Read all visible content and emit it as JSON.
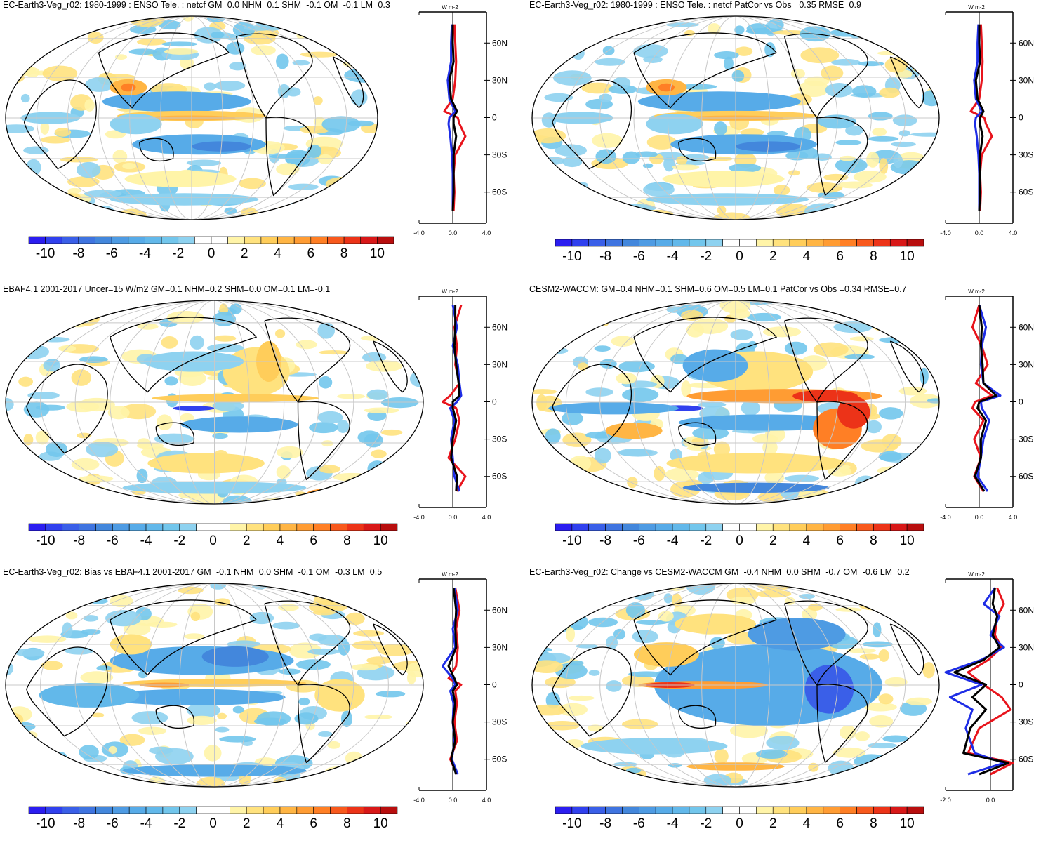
{
  "panels": [
    {
      "title": "EC-Earth3-Veg_r02: 1980-1999 : ENSO Tele. : netcf GM=0.0 NHM=0.1 SHM=-0.1 OM=-0.1 LM=0.3",
      "units": "W m-2",
      "xticks": [
        "-4.0",
        "0.0",
        "4.0"
      ],
      "xlim": [
        -4,
        4
      ]
    },
    {
      "title": "EC-Earth3-Veg_r02: 1980-1999 : ENSO Tele. : netcf PatCor vs Obs =0.35 RMSE=0.9",
      "units": "W m-2",
      "xticks": [
        "-4.0",
        "0.0",
        "4.0"
      ],
      "xlim": [
        -4,
        4
      ]
    },
    {
      "title": "EBAF4.1 2001-2017 Uncer=15 W/m2 GM=0.1 NHM=0.2 SHM=0.0 OM=0.1 LM=-0.1",
      "units": "W m-2",
      "xticks": [
        "-4.0",
        "0.0",
        "4.0"
      ],
      "xlim": [
        -4,
        4
      ]
    },
    {
      "title": "CESM2-WACCM: GM=0.4 NHM=0.1 SHM=0.6 OM=0.5 LM=0.1 PatCor vs Obs =0.34 RMSE=0.7",
      "units": "W m-2",
      "xticks": [
        "-4.0",
        "0.0",
        "4.0"
      ],
      "xlim": [
        -4,
        4
      ]
    },
    {
      "title": "EC-Earth3-Veg_r02: Bias vs EBAF4.1 2001-2017 GM=-0.1 NHM=0.0 SHM=-0.1 OM=-0.3 LM=0.5",
      "units": "W m-2",
      "xticks": [
        "-4.0",
        "0.0",
        "4.0"
      ],
      "xlim": [
        -4,
        4
      ]
    },
    {
      "title": "EC-Earth3-Veg_r02: Change vs CESM2-WACCM GM=-0.4 NHM=0.0 SHM=-0.7 OM=-0.6 LM=0.2",
      "units": "W m-2",
      "xticks": [
        "-2.0",
        "0.0"
      ],
      "xlim": [
        -2,
        1
      ]
    }
  ],
  "lat_ticks": [
    "60N",
    "30N",
    "0",
    "30S",
    "60S"
  ],
  "colorbar": {
    "labels": [
      "-10",
      "-8",
      "-6",
      "-4",
      "-2",
      "0",
      "2",
      "4",
      "6",
      "8",
      "10"
    ],
    "colors": [
      "#2b1df0",
      "#3040ee",
      "#3a5fe8",
      "#3f74e0",
      "#4387dc",
      "#4e9be3",
      "#57abe8",
      "#62b8ea",
      "#72c6ec",
      "#8ed2f0",
      "#ffffff",
      "#ffffff",
      "#fff4a8",
      "#ffe27e",
      "#ffcd5a",
      "#ffb544",
      "#ff9c33",
      "#ff7f25",
      "#f8591d",
      "#ec3318",
      "#d81818",
      "#b80e0e"
    ]
  },
  "chart_data": [
    {
      "type": "heatmap",
      "panel": 1,
      "title": "EC-Earth3-Veg_r02: 1980-1999 : ENSO Tele. : netcf GM=0.0 NHM=0.1 SHM=-0.1 OM=-0.1 LM=0.3",
      "zonal_mean_lat": [
        75,
        60,
        45,
        30,
        15,
        5,
        0,
        -5,
        -15,
        -30,
        -45,
        -60,
        -75
      ],
      "zonal_mean_series": [
        {
          "color": "red",
          "values": [
            0.2,
            0.3,
            0.4,
            0.3,
            0.0,
            -1.0,
            0.6,
            0.8,
            1.5,
            0.3,
            0.1,
            0.2,
            0.1
          ]
        },
        {
          "color": "blue",
          "values": [
            -0.1,
            -0.2,
            -0.2,
            -0.6,
            -0.4,
            0.3,
            -0.4,
            -0.5,
            -0.3,
            -0.1,
            0.0,
            0.0,
            0.0
          ]
        },
        {
          "color": "black",
          "values": [
            0.0,
            0.0,
            0.1,
            -0.4,
            -0.2,
            0.5,
            0.1,
            0.1,
            0.4,
            0.1,
            0.1,
            0.1,
            0.0
          ]
        }
      ]
    },
    {
      "type": "heatmap",
      "panel": 2,
      "title": "EC-Earth3-Veg_r02: 1980-1999 : ENSO Tele. : netcf PatCor vs Obs =0.35 RMSE=0.9",
      "zonal_mean_lat": [
        75,
        60,
        45,
        30,
        15,
        5,
        0,
        -5,
        -15,
        -30,
        -45,
        -60,
        -75
      ],
      "zonal_mean_series": [
        {
          "color": "red",
          "values": [
            0.2,
            0.3,
            0.4,
            0.3,
            0.0,
            -1.0,
            0.6,
            0.8,
            1.5,
            0.3,
            0.1,
            0.2,
            0.1
          ]
        },
        {
          "color": "blue",
          "values": [
            -0.1,
            -0.2,
            -0.2,
            -0.6,
            -0.4,
            0.3,
            -0.4,
            -0.5,
            -0.3,
            -0.1,
            0.0,
            0.0,
            0.0
          ]
        },
        {
          "color": "black",
          "values": [
            0.0,
            0.0,
            0.1,
            -0.4,
            -0.2,
            0.5,
            0.1,
            0.1,
            0.4,
            0.1,
            0.1,
            0.1,
            0.0
          ]
        }
      ]
    },
    {
      "type": "heatmap",
      "panel": 3,
      "title": "EBAF4.1 2001-2017 Uncer=15 W/m2 GM=0.1 NHM=0.2 SHM=0.0 OM=0.1 LM=-0.1",
      "zonal_mean_lat": [
        78,
        60,
        45,
        30,
        15,
        5,
        0,
        -5,
        -15,
        -30,
        -45,
        -60,
        -72
      ],
      "zonal_mean_series": [
        {
          "color": "red",
          "values": [
            1.0,
            0.2,
            0.5,
            0.3,
            0.8,
            -0.3,
            -1.2,
            0.4,
            0.8,
            0.3,
            -0.5,
            1.5,
            0.5
          ]
        },
        {
          "color": "blue",
          "values": [
            0.0,
            0.5,
            0.0,
            0.6,
            0.8,
            1.0,
            0.5,
            -0.3,
            0.2,
            -0.2,
            0.0,
            0.2,
            0.8
          ]
        },
        {
          "color": "black",
          "values": [
            0.3,
            0.3,
            0.2,
            0.4,
            0.7,
            0.8,
            0.0,
            0.0,
            0.4,
            0.0,
            -0.2,
            0.5,
            0.4
          ]
        }
      ]
    },
    {
      "type": "heatmap",
      "panel": 4,
      "title": "CESM2-WACCM: GM=0.4 NHM=0.1 SHM=0.6 OM=0.5 LM=0.1 PatCor vs Obs =0.34 RMSE=0.7",
      "zonal_mean_lat": [
        78,
        60,
        45,
        30,
        15,
        5,
        0,
        -5,
        -15,
        -30,
        -45,
        -60,
        -72
      ],
      "zonal_mean_series": [
        {
          "color": "red",
          "values": [
            0.0,
            -0.8,
            0.3,
            1.0,
            -0.4,
            1.5,
            -0.5,
            -0.8,
            0.5,
            -0.6,
            0.2,
            -0.6,
            0.5
          ]
        },
        {
          "color": "blue",
          "values": [
            0.0,
            0.8,
            0.3,
            0.2,
            0.5,
            2.5,
            0.2,
            0.3,
            1.2,
            0.5,
            0.2,
            -0.2,
            1.0
          ]
        },
        {
          "color": "black",
          "values": [
            0.0,
            0.3,
            0.2,
            0.4,
            0.5,
            2.0,
            0.0,
            -0.2,
            0.8,
            0.2,
            0.2,
            -0.5,
            0.6
          ]
        }
      ]
    },
    {
      "type": "heatmap",
      "panel": 5,
      "title": "EC-Earth3-Veg_r02: Bias vs EBAF4.1 2001-2017 GM=-0.1 NHM=0.0 SHM=-0.1 OM=-0.3 LM=0.5",
      "zonal_mean_lat": [
        78,
        60,
        45,
        30,
        15,
        5,
        0,
        -5,
        -15,
        -30,
        -45,
        -60,
        -72
      ],
      "zonal_mean_series": [
        {
          "color": "red",
          "values": [
            0.3,
            0.8,
            0.4,
            0.6,
            0.4,
            -0.5,
            1.0,
            0.3,
            0.5,
            0.2,
            0.5,
            -0.3,
            0.5
          ]
        },
        {
          "color": "blue",
          "values": [
            0.2,
            0.6,
            0.0,
            0.3,
            -1.2,
            0.0,
            0.3,
            -0.3,
            0.1,
            0.0,
            0.2,
            -0.1,
            0.6
          ]
        },
        {
          "color": "black",
          "values": [
            0.1,
            0.4,
            0.3,
            0.4,
            -0.5,
            0.2,
            0.5,
            0.0,
            0.3,
            0.0,
            0.3,
            -0.2,
            0.4
          ]
        }
      ]
    },
    {
      "type": "heatmap",
      "panel": 6,
      "title": "EC-Earth3-Veg_r02: Change vs CESM2-WACCM GM=-0.4 NHM=0.0 SHM=-0.7 OM=-0.6 LM=0.2",
      "zonal_mean_lat": [
        78,
        65,
        55,
        40,
        30,
        20,
        10,
        0,
        -10,
        -20,
        -35,
        -55,
        -63,
        -72
      ],
      "zonal_mean_series": [
        {
          "color": "red",
          "values": [
            0.3,
            0.6,
            0.3,
            0.2,
            0.5,
            -0.1,
            -1.0,
            -0.3,
            0.5,
            0.9,
            -0.5,
            -1.0,
            1.0,
            0.0
          ]
        },
        {
          "color": "blue",
          "values": [
            0.2,
            -0.3,
            0.4,
            0.0,
            0.6,
            -0.4,
            -2.0,
            -0.4,
            -1.8,
            -0.8,
            -1.1,
            -0.7,
            0.6,
            -1.0
          ]
        },
        {
          "color": "black",
          "values": [
            0.2,
            0.1,
            0.3,
            0.1,
            0.4,
            -0.3,
            -1.6,
            -0.2,
            -0.8,
            -0.2,
            -0.9,
            -1.2,
            0.8,
            -0.5
          ]
        }
      ]
    }
  ]
}
